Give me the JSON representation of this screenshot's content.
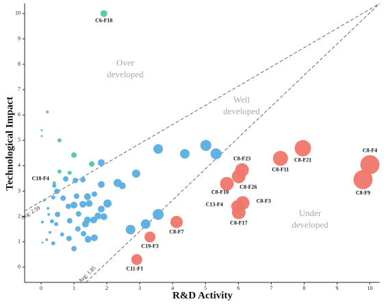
{
  "chart_data": {
    "type": "scatter",
    "x_label": "R&D Activity",
    "y_label": "Technological Impact",
    "xlim": [
      -0.5,
      10.3
    ],
    "ylim": [
      -0.6,
      10.4
    ],
    "xticks": [
      0,
      1,
      2,
      3,
      4,
      5,
      6,
      7,
      8,
      9,
      10
    ],
    "yticks": [
      0,
      1,
      2,
      3,
      4,
      5,
      6,
      7,
      8,
      9,
      10
    ],
    "grid": false,
    "ref_lines": [
      {
        "label": "Avg: 2.59",
        "axis": "y",
        "value": 2.59
      },
      {
        "label": "Avg: 1.85",
        "axis": "x",
        "value": 1.85
      }
    ],
    "annotations": [
      [
        "Over",
        "developed"
      ],
      [
        "Well",
        "developed"
      ],
      [
        "Under",
        "developed"
      ]
    ],
    "series": [
      {
        "color": "#4fc9a5",
        "x": [
          1.91,
          0.19,
          0.02,
          0.02,
          0.56,
          1.0,
          0.56,
          0.87,
          1.54,
          0.4
        ],
        "y": [
          10.0,
          6.12,
          5.4,
          5.17,
          5.0,
          4.42,
          3.77,
          3.72,
          4.07,
          3.32
        ],
        "size": [
          5,
          2,
          1.5,
          1.5,
          3,
          4,
          3,
          3,
          4,
          2.5
        ],
        "labels": [
          "C6-F18",
          null,
          null,
          null,
          null,
          null,
          null,
          null,
          null,
          "C18-F4"
        ]
      },
      {
        "color": "#5aade2",
        "x": [
          1.83,
          3.56,
          4.37,
          5.01,
          5.32,
          2.33,
          2.47,
          2.89,
          1.83,
          2.02,
          1.62,
          1.27,
          1.04,
          0.75,
          0.48,
          0.4,
          1.08,
          1.41,
          1.83,
          1.73,
          1.91,
          1.46,
          1.27,
          1.0,
          0.83,
          0.67,
          0.37,
          0.1,
          0.21,
          0.5,
          0.46,
          0.87,
          1.14,
          1.35,
          1.41,
          1.6,
          1.62,
          1.43,
          1.29,
          1.12,
          0.85,
          0.64,
          0.27,
          0.37,
          1.0,
          0.17,
          0.04,
          0.04,
          0.23,
          0.33,
          3.18,
          3.56,
          2.72
        ],
        "y": [
          4.12,
          4.66,
          4.47,
          4.8,
          4.47,
          3.32,
          3.21,
          3.69,
          3.26,
          2.51,
          2.88,
          3.45,
          3.42,
          3.48,
          2.99,
          3.21,
          2.8,
          2.78,
          2.29,
          2.02,
          1.99,
          2.51,
          2.48,
          2.45,
          2.4,
          2.72,
          2.75,
          2.64,
          2.32,
          2.08,
          1.7,
          1.83,
          2.1,
          1.7,
          1.86,
          1.86,
          1.16,
          1.1,
          1.32,
          1.51,
          1.13,
          1.29,
          1.37,
          0.94,
          0.73,
          1.08,
          0.97,
          1.78,
          2.08,
          1.81,
          1.7,
          2.08,
          1.48
        ],
        "size": [
          5,
          7,
          7,
          8,
          8,
          6,
          5,
          6,
          5,
          6,
          4,
          4,
          4,
          4,
          4,
          3,
          4,
          5,
          5,
          5,
          5,
          5,
          5,
          5,
          4,
          4,
          3,
          2,
          2,
          4,
          3,
          4,
          4,
          5,
          5,
          5,
          5,
          5,
          4,
          4,
          4,
          3,
          2,
          3,
          4,
          2,
          1.5,
          2,
          2,
          3,
          7,
          8,
          7
        ],
        "labels": []
      },
      {
        "color": "#f0766a",
        "x": [
          10.0,
          9.79,
          7.96,
          7.28,
          6.11,
          6.01,
          5.65,
          6.13,
          5.97,
          6.01,
          4.12,
          3.31,
          2.91
        ],
        "y": [
          4.04,
          3.45,
          4.69,
          4.29,
          3.83,
          3.58,
          3.29,
          2.53,
          2.4,
          2.16,
          1.78,
          1.19,
          0.3
        ],
        "size": [
          14,
          14,
          12,
          11,
          10,
          10,
          10,
          10,
          9,
          10,
          9,
          8,
          8
        ],
        "labels": [
          "C8-F4",
          "C8-F9",
          "C8-F21",
          "C8-F11",
          "C8-F23",
          "C8-F26",
          "C8-F10",
          "C8-F3",
          "C13-F4",
          "C8-F17",
          "C8-F7",
          "C19-F3",
          "C11-F1"
        ]
      }
    ]
  }
}
